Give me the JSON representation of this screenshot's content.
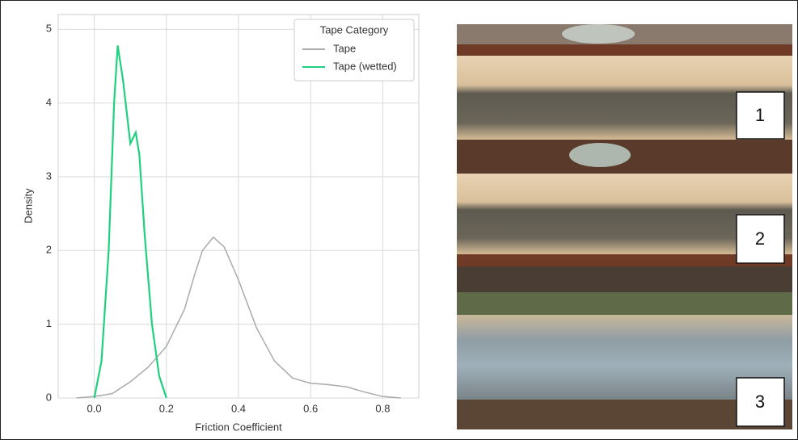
{
  "chart_data": {
    "type": "line",
    "x_label": "Friction Coefficient",
    "y_label": "Density",
    "legend_title": "Tape Category",
    "legend": "upper right",
    "grid": true,
    "xlim": [
      -0.1,
      0.9
    ],
    "ylim": [
      0,
      5.2
    ],
    "xticks": [
      {
        "value": 0,
        "label": "0.0"
      },
      0.2,
      0.4,
      0.6,
      0.8
    ],
    "yticks": [
      0,
      1,
      2,
      3,
      4,
      5
    ],
    "series": [
      {
        "name": "Tape",
        "color": "#aaaaaa",
        "x": [
          -0.05,
          0.0,
          0.05,
          0.1,
          0.15,
          0.2,
          0.25,
          0.28,
          0.3,
          0.33,
          0.36,
          0.4,
          0.45,
          0.5,
          0.55,
          0.6,
          0.65,
          0.7,
          0.75,
          0.8,
          0.85
        ],
        "values": [
          0.0,
          0.02,
          0.06,
          0.22,
          0.42,
          0.7,
          1.2,
          1.7,
          2.0,
          2.18,
          2.05,
          1.6,
          0.95,
          0.5,
          0.27,
          0.2,
          0.18,
          0.15,
          0.08,
          0.02,
          0.0
        ]
      },
      {
        "name": "Tape (wetted)",
        "color": "#1fd07f",
        "x": [
          0.0,
          0.02,
          0.04,
          0.055,
          0.065,
          0.08,
          0.1,
          0.115,
          0.125,
          0.14,
          0.16,
          0.18,
          0.2
        ],
        "values": [
          0.0,
          0.5,
          2.0,
          4.0,
          4.78,
          4.3,
          3.45,
          3.6,
          3.3,
          2.2,
          1.0,
          0.3,
          0.0
        ]
      }
    ]
  },
  "photo": {
    "labels": [
      "1",
      "2",
      "3"
    ]
  }
}
